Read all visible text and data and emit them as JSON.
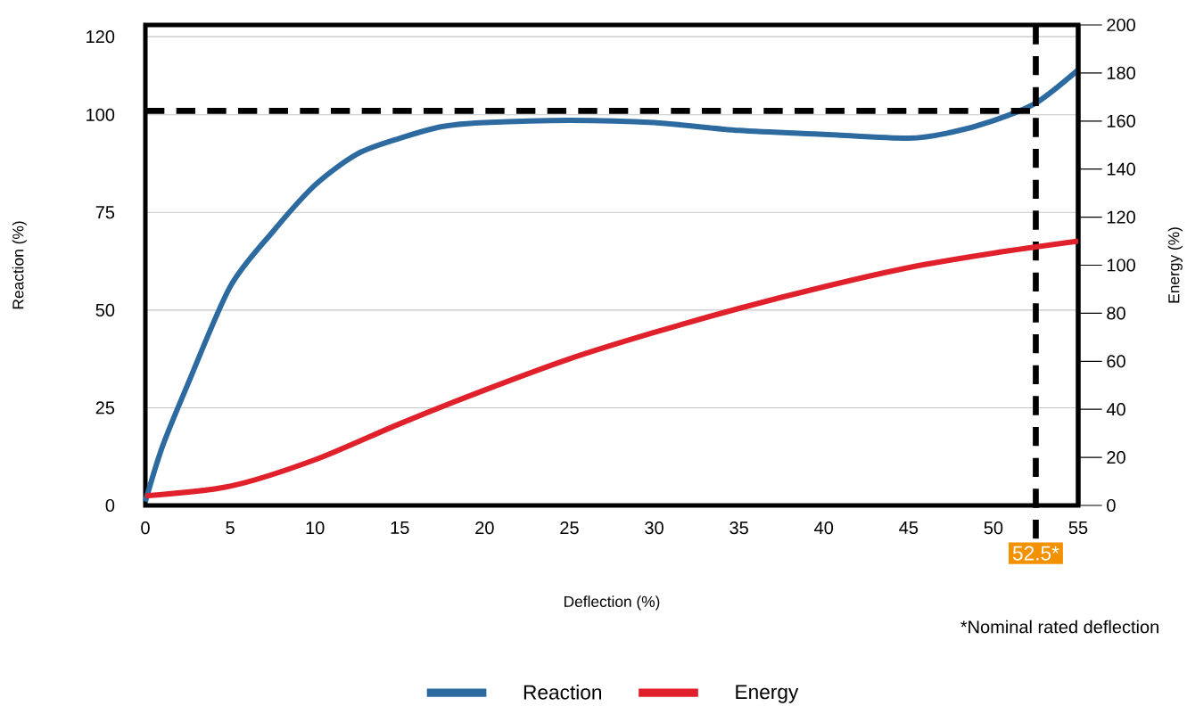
{
  "chart_data": {
    "type": "line",
    "xlabel": "Deflection (%)",
    "ylabel": "Reaction (%)",
    "y2label": "Energy (%)",
    "series": [
      {
        "name": "Reaction",
        "color": "#2c6aa0",
        "x": [
          0,
          1,
          2.5,
          5,
          7.5,
          10,
          12.5,
          15,
          17.5,
          20,
          25,
          30,
          35,
          40,
          45,
          47.5,
          50,
          52.5,
          55
        ],
        "values": [
          1,
          15,
          31,
          56,
          70,
          82,
          90,
          94,
          97,
          98,
          98.6,
          98,
          96,
          95,
          94,
          95.5,
          98.5,
          103,
          111.5
        ]
      },
      {
        "name": "Energy",
        "color": "#e0202a",
        "axis": "y2",
        "x": [
          0,
          5,
          10,
          15,
          20,
          25,
          30,
          35,
          40,
          45,
          50,
          55
        ],
        "values": [
          4,
          8,
          19,
          34,
          48,
          61,
          72,
          82,
          91,
          99,
          105,
          110
        ]
      }
    ],
    "xlim": [
      0,
      55
    ],
    "xticks": [
      0,
      5,
      10,
      15,
      20,
      25,
      30,
      35,
      40,
      45,
      50,
      55
    ],
    "ylim": [
      0,
      123
    ],
    "yticks": [
      0,
      25,
      50,
      75,
      100,
      120
    ],
    "y2lim": [
      0,
      200
    ],
    "y2ticks": [
      0,
      20,
      40,
      60,
      80,
      100,
      120,
      140,
      160,
      180,
      200
    ],
    "ref_lines": [
      {
        "axis": "y",
        "value": 101,
        "color": "#000000",
        "line_style": "dashed"
      },
      {
        "axis": "x",
        "value": 52.5,
        "label": "52.5*",
        "color": "#000000",
        "line_style": "dashed"
      }
    ],
    "annotations": [
      "*Nominal rated deflection"
    ],
    "grid": "y",
    "legend": "bottom",
    "marker": "none",
    "line_style": "solid"
  }
}
